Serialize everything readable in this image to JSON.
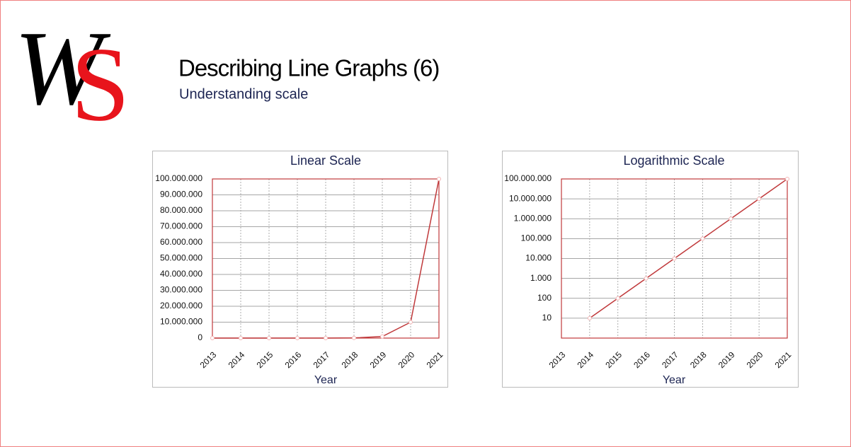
{
  "logo": [
    "W",
    "S"
  ],
  "header": {
    "title": "Describing Line Graphs (6)",
    "subtitle": "Understanding scale"
  },
  "chart_data": [
    {
      "type": "line",
      "title": "Linear Scale",
      "x_label": "Year",
      "color": "#c0393b",
      "log": false,
      "grid": true,
      "x": [
        2013,
        2014,
        2015,
        2016,
        2017,
        2018,
        2019,
        2020,
        2021
      ],
      "values": [
        0,
        10,
        100,
        1000,
        10000,
        100000,
        1000000,
        10000000,
        100000000
      ],
      "xlim": [
        2013,
        2021
      ],
      "xticks": [
        2013,
        2014,
        2015,
        2016,
        2017,
        2018,
        2019,
        2020,
        2021
      ],
      "ylim": [
        0,
        100000000
      ],
      "yticks": [
        0,
        {
          "value": 10000000,
          "label": "10.000.000"
        },
        {
          "value": 20000000,
          "label": "20.000.000"
        },
        {
          "value": 30000000,
          "label": "30.000.000"
        },
        {
          "value": 40000000,
          "label": "40.000.000"
        },
        {
          "value": 50000000,
          "label": "50.000.000"
        },
        {
          "value": 60000000,
          "label": "60.000.000"
        },
        {
          "value": 70000000,
          "label": "70.000.000"
        },
        {
          "value": 80000000,
          "label": "80.000.000"
        },
        {
          "value": 90000000,
          "label": "90.000.000"
        },
        {
          "value": 100000000,
          "label": "100.000.000"
        }
      ]
    },
    {
      "type": "line",
      "title": "Logarithmic Scale",
      "x_label": "Year",
      "color": "#c0393b",
      "log": true,
      "grid": true,
      "x": [
        2013,
        2014,
        2015,
        2016,
        2017,
        2018,
        2019,
        2020,
        2021
      ],
      "values": [
        null,
        10,
        100,
        1000,
        10000,
        100000,
        1000000,
        10000000,
        100000000
      ],
      "xlim": [
        2013,
        2021
      ],
      "xticks": [
        2013,
        2014,
        2015,
        2016,
        2017,
        2018,
        2019,
        2020,
        2021
      ],
      "ylim": [
        1,
        100000000
      ],
      "yticks": [
        10,
        100,
        {
          "value": 1000,
          "label": "1.000"
        },
        {
          "value": 10000,
          "label": "10.000"
        },
        {
          "value": 100000,
          "label": "100.000"
        },
        {
          "value": 1000000,
          "label": "1.000.000"
        },
        {
          "value": 10000000,
          "label": "10.000.000"
        },
        {
          "value": 100000000,
          "label": "100.000.000"
        }
      ]
    }
  ]
}
